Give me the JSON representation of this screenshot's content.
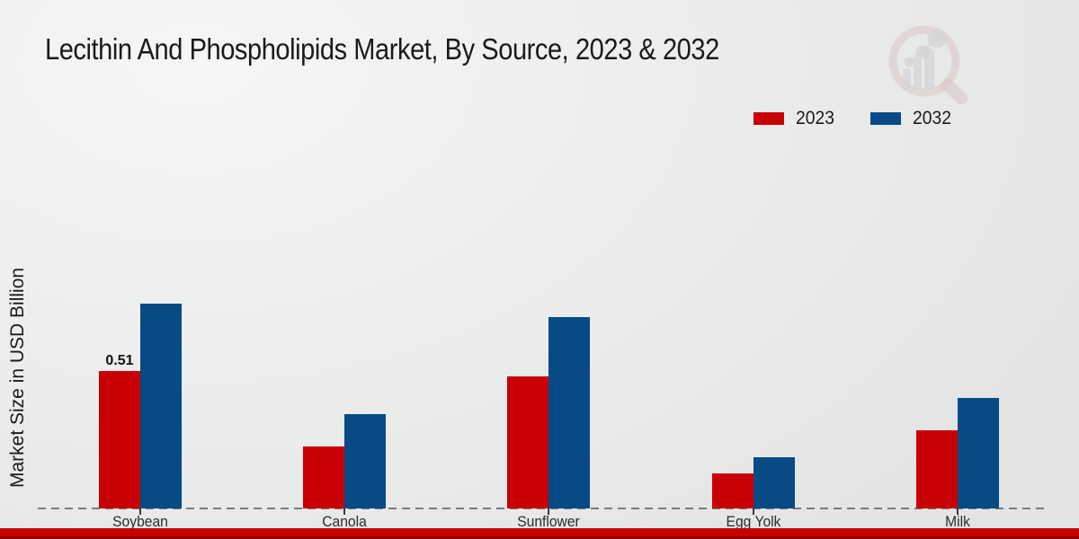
{
  "chart_data": {
    "type": "bar",
    "title": "Lecithin And Phospholipids Market, By Source, 2023 & 2032",
    "ylabel": "Market Size in USD Billion",
    "xlabel": "",
    "categories": [
      "Soybean",
      "Canola",
      "Sunflower",
      "Egg Yolk",
      "Milk"
    ],
    "series": [
      {
        "name": "2023",
        "color": "#c80005",
        "values": [
          0.51,
          0.23,
          0.49,
          0.13,
          0.29
        ]
      },
      {
        "name": "2032",
        "color": "#084a86",
        "values": [
          0.76,
          0.35,
          0.71,
          0.19,
          0.41
        ]
      }
    ],
    "annotations": [
      {
        "category": "Soybean",
        "series": "2023",
        "text": "0.51"
      }
    ],
    "ylim": [
      0,
      1.5
    ],
    "grid": false,
    "legend_position": "top-right",
    "axis_line": "dashed"
  },
  "footer": {
    "bar_color": "#c60000",
    "edge_color": "#8e0000"
  },
  "watermark": {
    "icon": "magnifier-bar-chart-icon"
  }
}
